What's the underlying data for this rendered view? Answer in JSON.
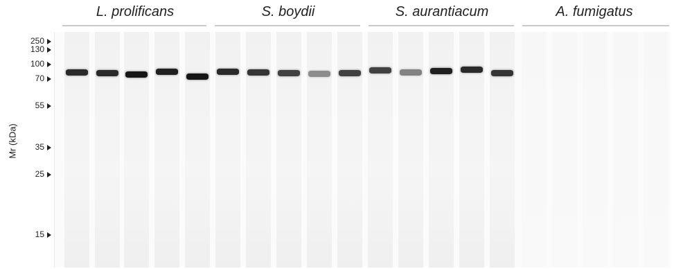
{
  "groups": [
    {
      "name": "L. prolificans"
    },
    {
      "name": "S. boydii"
    },
    {
      "name": "S. aurantiacum"
    },
    {
      "name": "A. fumigatus"
    }
  ],
  "axis": {
    "label": "Mr (kDa)"
  },
  "markers": [
    "250",
    "130",
    "100",
    "70",
    "55",
    "35",
    "25",
    "15"
  ],
  "lanes": [
    {
      "group": "L. prolificans",
      "band": true,
      "intensity": 0.9
    },
    {
      "group": "L. prolificans",
      "band": true,
      "intensity": 0.9
    },
    {
      "group": "L. prolificans",
      "band": true,
      "intensity": 1.0
    },
    {
      "group": "L. prolificans",
      "band": true,
      "intensity": 0.95
    },
    {
      "group": "L. prolificans",
      "band": true,
      "intensity": 1.0
    },
    {
      "group": "S. boydii",
      "band": true,
      "intensity": 0.9
    },
    {
      "group": "S. boydii",
      "band": true,
      "intensity": 0.85
    },
    {
      "group": "S. boydii",
      "band": true,
      "intensity": 0.8
    },
    {
      "group": "S. boydii",
      "band": true,
      "intensity": 0.45
    },
    {
      "group": "S. boydii",
      "band": true,
      "intensity": 0.8
    },
    {
      "group": "S. aurantiacum",
      "band": true,
      "intensity": 0.8
    },
    {
      "group": "S. aurantiacum",
      "band": true,
      "intensity": 0.5
    },
    {
      "group": "S. aurantiacum",
      "band": true,
      "intensity": 0.95
    },
    {
      "group": "S. aurantiacum",
      "band": true,
      "intensity": 0.9
    },
    {
      "group": "S. aurantiacum",
      "band": true,
      "intensity": 0.85
    },
    {
      "group": "A. fumigatus",
      "band": false,
      "intensity": 0
    },
    {
      "group": "A. fumigatus",
      "band": false,
      "intensity": 0
    },
    {
      "group": "A. fumigatus",
      "band": false,
      "intensity": 0
    },
    {
      "group": "A. fumigatus",
      "band": false,
      "intensity": 0
    },
    {
      "group": "A. fumigatus",
      "band": false,
      "intensity": 0
    }
  ],
  "colors": {
    "band": "#151515",
    "background": "#fbfbfb",
    "lane": "#f1f1f1"
  }
}
